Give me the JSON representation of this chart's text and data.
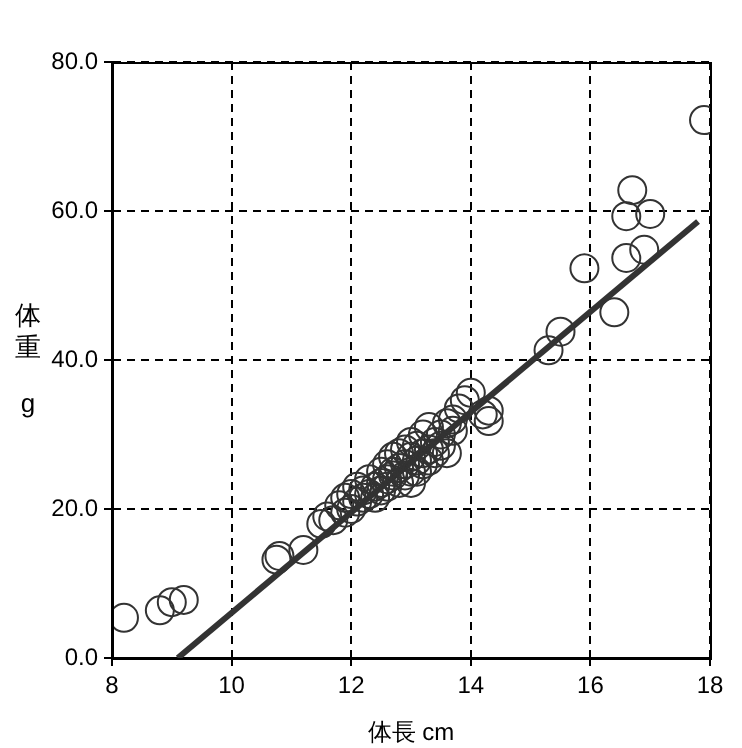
{
  "chart_data": {
    "type": "scatter",
    "xlabel": "体長 cm",
    "ylabel": "体重 g",
    "xlim": [
      8,
      18
    ],
    "xticks": [
      8,
      10,
      12,
      14,
      16,
      18
    ],
    "ylim": [
      0,
      80
    ],
    "yticks": [
      {
        "value": 0,
        "label": "0.0"
      },
      {
        "value": 20,
        "label": "20.0"
      },
      {
        "value": 40,
        "label": "40.0"
      },
      {
        "value": 60,
        "label": "60.0"
      },
      {
        "value": 80,
        "label": "80.0"
      }
    ],
    "grid": true,
    "marker": "circle",
    "series": [
      {
        "color": "#333333",
        "x": [
          8.2,
          8.8,
          9.0,
          9.2,
          10.75,
          10.8,
          11.2,
          11.5,
          11.6,
          11.7,
          11.8,
          11.9,
          11.9,
          12.0,
          12.0,
          12.1,
          12.1,
          12.2,
          12.2,
          12.3,
          12.3,
          12.4,
          12.4,
          12.5,
          12.5,
          12.5,
          12.6,
          12.6,
          12.6,
          12.7,
          12.7,
          12.7,
          12.8,
          12.8,
          12.8,
          12.9,
          12.9,
          12.9,
          13.0,
          13.0,
          13.0,
          13.0,
          13.1,
          13.1,
          13.1,
          13.2,
          13.2,
          13.2,
          13.3,
          13.3,
          13.3,
          13.4,
          13.4,
          13.5,
          13.5,
          13.6,
          13.6,
          13.7,
          13.7,
          13.8,
          13.9,
          14.0,
          14.2,
          14.3,
          14.3,
          15.3,
          15.5,
          15.9,
          16.4,
          16.6,
          16.6,
          16.7,
          16.9,
          17.0,
          17.9
        ],
        "values": [
          5.4,
          6.4,
          7.5,
          7.8,
          13.2,
          13.7,
          14.5,
          18.0,
          19.0,
          18.5,
          20.5,
          19.5,
          21.5,
          20.0,
          22.0,
          21.0,
          23.0,
          21.5,
          22.5,
          22.0,
          24.0,
          23.0,
          21.5,
          23.5,
          25.0,
          22.5,
          24.0,
          26.0,
          23.0,
          25.0,
          27.0,
          24.5,
          25.5,
          23.5,
          27.5,
          26.0,
          28.0,
          24.5,
          25.0,
          27.0,
          29.0,
          23.5,
          26.5,
          28.5,
          25.0,
          27.5,
          30.0,
          26.0,
          28.0,
          31.0,
          26.5,
          29.0,
          27.5,
          30.0,
          28.5,
          31.5,
          27.5,
          30.5,
          32.0,
          33.5,
          34.6,
          35.6,
          32.7,
          33.2,
          31.8,
          41.3,
          43.8,
          52.3,
          46.4,
          53.7,
          59.3,
          62.8,
          54.8,
          59.6,
          72.2
        ]
      },
      {
        "type": "line",
        "color": "#333333",
        "line_style": "solid",
        "marker": "none",
        "x": [
          9.1,
          17.8
        ],
        "values": [
          0,
          58.6
        ]
      }
    ]
  }
}
